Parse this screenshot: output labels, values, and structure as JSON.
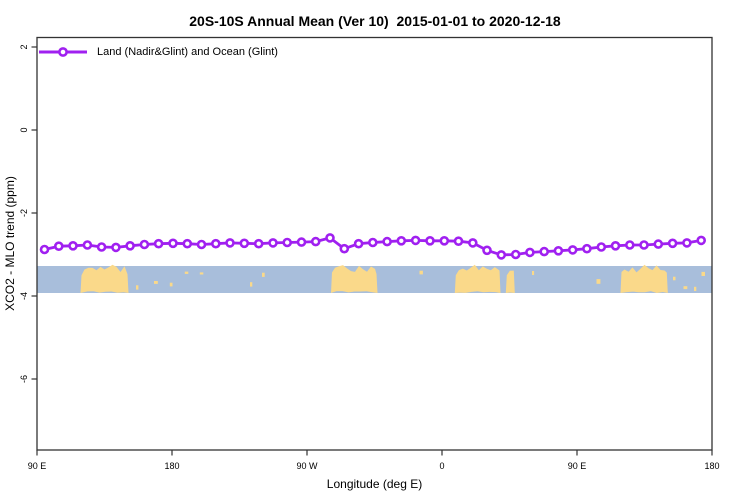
{
  "chart_data": {
    "type": "line",
    "title": "20S-10S Annual Mean (Ver 10)  2015-01-01 to 2020-12-18",
    "xlabel": "Longitude (deg E)",
    "ylabel": "XCO2 - MLO trend (ppm)",
    "legend": {
      "label": "Land (Nadir&Glint) and Ocean (Glint)",
      "position": "top-left",
      "marker": "open-circle-on-line"
    },
    "x_axis": {
      "range": [
        90,
        540
      ],
      "wraps": "90E to 180 to 90W to 0 to 90E to 180",
      "ticks": [
        {
          "pos": 90,
          "label": "90 E"
        },
        {
          "pos": 180,
          "label": "180"
        },
        {
          "pos": 270,
          "label": "90 W"
        },
        {
          "pos": 360,
          "label": "0"
        },
        {
          "pos": 450,
          "label": "90 E"
        },
        {
          "pos": 540,
          "label": "180"
        }
      ]
    },
    "y_axis": {
      "range": [
        -7.7,
        2.25
      ],
      "ticks": [
        {
          "pos": 2,
          "label": "2"
        },
        {
          "pos": 0,
          "label": "0"
        },
        {
          "pos": -2,
          "label": "-2"
        },
        {
          "pos": -4,
          "label": "-4"
        },
        {
          "pos": -6,
          "label": "-6"
        }
      ]
    },
    "series": [
      {
        "name": "Land (Nadir&Glint) and Ocean (Glint)",
        "color": "#A020F0",
        "marker": "open-circle",
        "points": [
          [
            95.0,
            -2.88
          ],
          [
            104.5,
            -2.8
          ],
          [
            114.0,
            -2.79
          ],
          [
            123.6,
            -2.77
          ],
          [
            133.1,
            -2.82
          ],
          [
            142.6,
            -2.83
          ],
          [
            152.1,
            -2.79
          ],
          [
            161.6,
            -2.76
          ],
          [
            171.1,
            -2.74
          ],
          [
            180.7,
            -2.73
          ],
          [
            190.2,
            -2.74
          ],
          [
            199.7,
            -2.76
          ],
          [
            209.2,
            -2.74
          ],
          [
            218.7,
            -2.72
          ],
          [
            228.2,
            -2.73
          ],
          [
            237.8,
            -2.74
          ],
          [
            247.3,
            -2.72
          ],
          [
            256.8,
            -2.71
          ],
          [
            266.3,
            -2.7
          ],
          [
            275.8,
            -2.69
          ],
          [
            285.3,
            -2.6
          ],
          [
            294.9,
            -2.86
          ],
          [
            304.4,
            -2.74
          ],
          [
            313.9,
            -2.71
          ],
          [
            323.4,
            -2.69
          ],
          [
            332.9,
            -2.67
          ],
          [
            342.4,
            -2.66
          ],
          [
            352.0,
            -2.67
          ],
          [
            361.5,
            -2.67
          ],
          [
            371.0,
            -2.68
          ],
          [
            380.5,
            -2.72
          ],
          [
            390.0,
            -2.9
          ],
          [
            399.5,
            -3.01
          ],
          [
            409.1,
            -3.0
          ],
          [
            418.6,
            -2.95
          ],
          [
            428.1,
            -2.93
          ],
          [
            437.6,
            -2.91
          ],
          [
            447.1,
            -2.89
          ],
          [
            456.6,
            -2.86
          ],
          [
            466.2,
            -2.82
          ],
          [
            475.7,
            -2.79
          ],
          [
            485.2,
            -2.77
          ],
          [
            494.7,
            -2.77
          ],
          [
            504.2,
            -2.75
          ],
          [
            513.7,
            -2.73
          ],
          [
            523.3,
            -2.72
          ],
          [
            532.8,
            -2.66
          ]
        ]
      }
    ],
    "map_strip": {
      "description": "land-ocean map band for 20S-10S latitude zone",
      "value_range": [
        -3.93,
        -3.35
      ],
      "ocean_color": "#A8BEDB",
      "land_color": "#FAD98A",
      "land_segments": [
        {
          "name": "australia-left-copy",
          "from": 119.0,
          "to": 151.0
        },
        {
          "name": "south-america",
          "from": 286.0,
          "to": 317.0
        },
        {
          "name": "africa",
          "from": 368.5,
          "to": 399.0
        },
        {
          "name": "madagascar",
          "from": 402.5,
          "to": 408.5
        },
        {
          "name": "australia-right-copy",
          "from": 479.0,
          "to": 510.5
        }
      ],
      "island_specks": [
        156,
        168,
        178.5,
        188.5,
        198.5,
        232,
        240,
        345,
        420,
        463,
        514,
        521,
        528,
        533
      ]
    },
    "layout": {
      "grid": false,
      "legend_box": false,
      "axis_color": "#333333"
    }
  }
}
